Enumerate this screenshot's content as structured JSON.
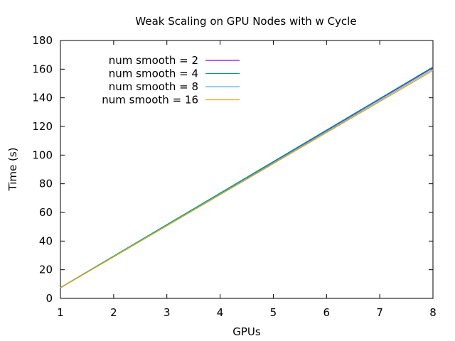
{
  "chart_data": {
    "type": "line",
    "title": "Weak Scaling on GPU Nodes with w Cycle",
    "xlabel": "GPUs",
    "ylabel": "Time (s)",
    "xlim": [
      1,
      8
    ],
    "ylim": [
      0,
      180
    ],
    "xticks": [
      1,
      2,
      3,
      4,
      5,
      6,
      7,
      8
    ],
    "yticks": [
      0,
      20,
      40,
      60,
      80,
      100,
      120,
      140,
      160,
      180
    ],
    "grid": false,
    "legend_position": "top-left",
    "series": [
      {
        "name": "num smooth = 2",
        "color": "#9400d3",
        "x": [
          1,
          8
        ],
        "y": [
          7.5,
          161.0
        ]
      },
      {
        "name": "num smooth = 4",
        "color": "#009e73",
        "x": [
          1,
          8
        ],
        "y": [
          7.5,
          161.5
        ]
      },
      {
        "name": "num smooth = 8",
        "color": "#56b4e9",
        "x": [
          1,
          8
        ],
        "y": [
          7.4,
          160.0
        ]
      },
      {
        "name": "num smooth = 16",
        "color": "#e69f00",
        "x": [
          1,
          8
        ],
        "y": [
          7.3,
          159.0
        ]
      }
    ]
  }
}
